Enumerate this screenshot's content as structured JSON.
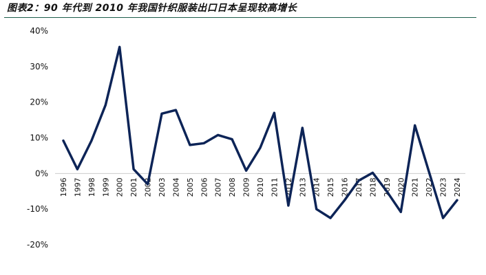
{
  "title": "图表2：90 年代到 2010 年我国针织服装出口日本呈现较高增长",
  "colors": {
    "line": "#0d2457",
    "rule": "#1b5e4b",
    "zero": "#cccccc"
  },
  "chart_data": {
    "type": "line",
    "title": "",
    "xlabel": "",
    "ylabel": "",
    "ylim": [
      -0.2,
      0.4
    ],
    "y_ticks": [
      0.4,
      0.3,
      0.2,
      0.1,
      0,
      -0.1,
      -0.2
    ],
    "y_tick_labels": [
      "40%",
      "30%",
      "20%",
      "10%",
      "0%",
      "-10%",
      "-20%"
    ],
    "categories": [
      "1996",
      "1997",
      "1998",
      "1999",
      "2000",
      "2001",
      "2002",
      "2003",
      "2004",
      "2005",
      "2006",
      "2007",
      "2008",
      "2009",
      "2010",
      "2011",
      "2012",
      "2013",
      "2014",
      "2015",
      "2016",
      "2017",
      "2018",
      "2019",
      "2020",
      "2021",
      "2022",
      "2023",
      "2024"
    ],
    "series": [
      {
        "name": "",
        "values": [
          0.092,
          0.012,
          0.092,
          0.192,
          0.355,
          0.012,
          -0.03,
          0.168,
          0.178,
          0.08,
          0.085,
          0.108,
          0.096,
          0.008,
          0.072,
          0.17,
          -0.09,
          0.128,
          -0.1,
          -0.125,
          -0.075,
          -0.02,
          0.002,
          -0.05,
          -0.108,
          0.135,
          0.005,
          -0.125,
          -0.075
        ]
      }
    ],
    "grid": false,
    "legend": "none"
  }
}
